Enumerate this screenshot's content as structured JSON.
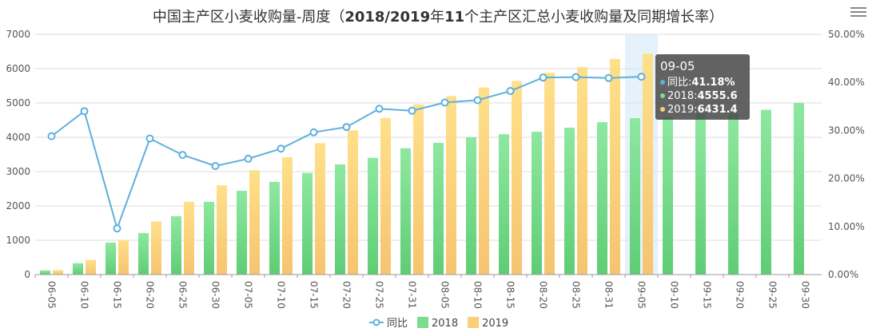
{
  "menu_icon": "hamburger-menu-icon",
  "chart_data": {
    "type": "bar",
    "title_parts": [
      {
        "text": "中国主产区小麦收购量-周度（",
        "bold": false
      },
      {
        "text": "2018/2019",
        "bold": true
      },
      {
        "text": "年",
        "bold": false
      },
      {
        "text": "11",
        "bold": true
      },
      {
        "text": "个主产区汇总小麦收购量及同期增长率）",
        "bold": false
      }
    ],
    "categories": [
      "06-05",
      "06-10",
      "06-15",
      "06-20",
      "06-25",
      "06-30",
      "07-05",
      "07-10",
      "07-15",
      "07-20",
      "07-25",
      "07-31",
      "08-05",
      "08-10",
      "08-15",
      "08-20",
      "08-25",
      "08-31",
      "09-05",
      "09-10",
      "09-15",
      "09-20",
      "09-25",
      "09-30"
    ],
    "series": [
      {
        "name": "2018",
        "kind": "bar",
        "axis": "left",
        "color": "#7bdc8c",
        "values": [
          120,
          330,
          930,
          1210,
          1700,
          2120,
          2440,
          2700,
          2960,
          3210,
          3400,
          3680,
          3840,
          4000,
          4090,
          4160,
          4280,
          4440,
          4555.6,
          4600,
          4680,
          4700,
          4800,
          5000
        ]
      },
      {
        "name": "2019",
        "kind": "bar",
        "axis": "left",
        "color": "#f9cf7c",
        "values": [
          130,
          430,
          1010,
          1550,
          2120,
          2600,
          3040,
          3420,
          3830,
          4200,
          4560,
          4960,
          5200,
          5450,
          5640,
          5880,
          6040,
          6280,
          6431.4,
          null,
          null,
          null,
          null,
          null
        ]
      },
      {
        "name": "同比",
        "kind": "line",
        "axis": "right",
        "color": "#5eb0dd",
        "values": [
          28.8,
          34.0,
          9.6,
          28.3,
          24.9,
          22.6,
          24.1,
          26.2,
          29.6,
          30.7,
          34.5,
          34.1,
          35.8,
          36.3,
          38.2,
          41.0,
          41.1,
          40.9,
          41.18,
          null,
          null,
          null,
          null,
          null
        ]
      }
    ],
    "y_left": {
      "min": 0,
      "max": 7000,
      "ticks": [
        0,
        1000,
        2000,
        3000,
        4000,
        5000,
        6000,
        7000
      ]
    },
    "y_right": {
      "min": 0,
      "max": 50,
      "ticks": [
        "0.00%",
        "10.00%",
        "20.00%",
        "30.00%",
        "40.00%",
        "50.00%"
      ]
    },
    "grid": true,
    "legend_position": "bottom-center",
    "tooltip": {
      "category": "09-05",
      "title": "09-05",
      "lines": [
        {
          "label": "同比:",
          "value": "41.18%",
          "color": "#5eb0dd"
        },
        {
          "label": "2018:",
          "value": "4555.6",
          "color": "#7bdc8c"
        },
        {
          "label": "2019:",
          "value": "6431.4",
          "color": "#f9cf7c"
        }
      ]
    }
  }
}
